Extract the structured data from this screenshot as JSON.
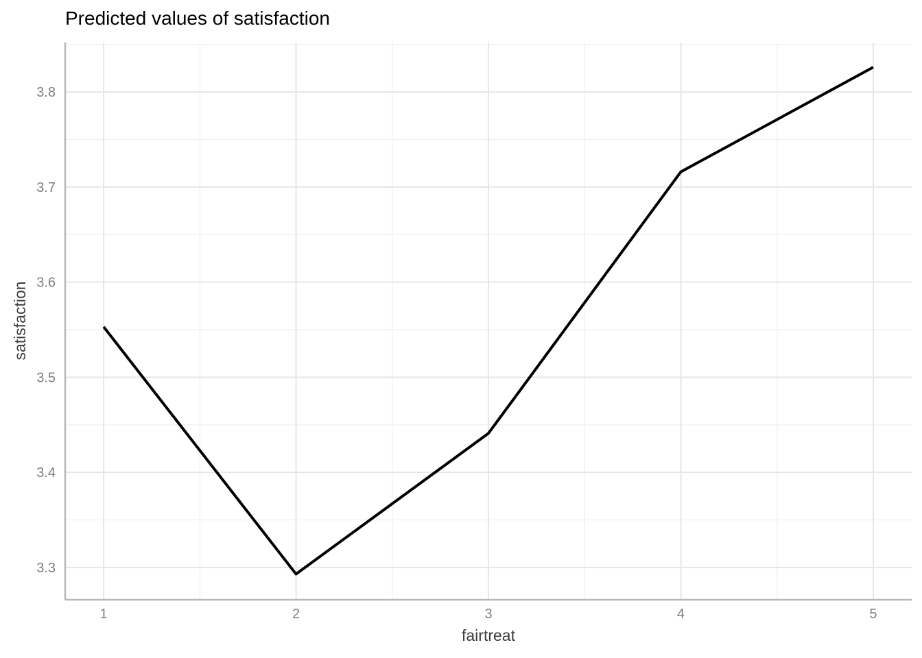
{
  "title": "Predicted values of satisfaction",
  "chart_data": {
    "type": "line",
    "title": "Predicted values of satisfaction",
    "xlabel": "fairtreat",
    "ylabel": "satisfaction",
    "x": [
      1,
      2,
      3,
      4,
      5
    ],
    "y": [
      3.553,
      3.293,
      3.441,
      3.716,
      3.826
    ],
    "xlim": [
      0.8,
      5.2
    ],
    "ylim": [
      3.266,
      3.852
    ],
    "x_ticks": [
      1,
      2,
      3,
      4,
      5
    ],
    "x_tick_labels": [
      "1",
      "2",
      "3",
      "4",
      "5"
    ],
    "y_ticks": [
      3.3,
      3.4,
      3.5,
      3.6,
      3.7,
      3.8
    ],
    "y_tick_labels": [
      "3.3",
      "3.4",
      "3.5",
      "3.6",
      "3.7",
      "3.8"
    ],
    "x_minor_ticks": [
      1.5,
      2.5,
      3.5,
      4.5
    ],
    "y_minor_ticks": [
      3.35,
      3.45,
      3.55,
      3.65,
      3.75,
      3.85
    ],
    "grid": true,
    "legend": false,
    "colors": {
      "line": "#000000",
      "grid_major": "#e6e6e6",
      "grid_minor": "#f2f2f2",
      "axis_line": "#b8b8b8",
      "tick_label": "#7e7e7e",
      "axis_title": "#3b3b3b",
      "title": "#000000"
    }
  }
}
